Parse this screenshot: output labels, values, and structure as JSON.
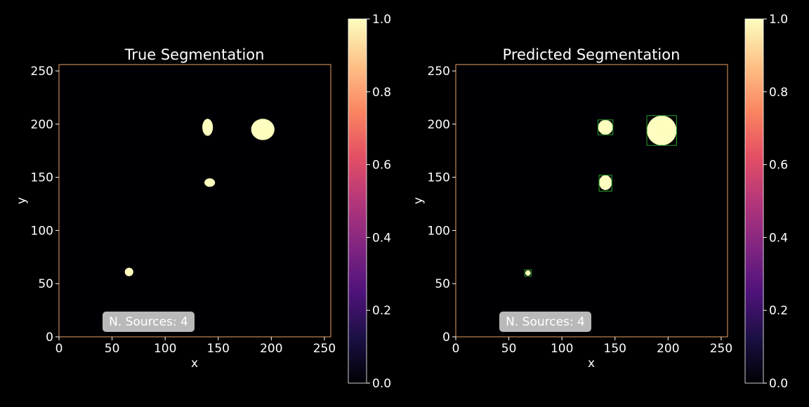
{
  "chart_data": [
    {
      "type": "heatmap",
      "title": "True Segmentation",
      "xlabel": "x",
      "ylabel": "y",
      "xlim": [
        0,
        256
      ],
      "ylim": [
        0,
        256
      ],
      "xticks": [
        0,
        50,
        100,
        150,
        200,
        250
      ],
      "yticks": [
        0,
        50,
        100,
        150,
        200,
        250
      ],
      "colormap": "magma",
      "colorbar": {
        "range": [
          0,
          1
        ],
        "ticks": [
          "0.0",
          "0.2",
          "0.4",
          "0.6",
          "0.8",
          "1.0"
        ]
      },
      "annotation": "N. Sources: 4",
      "sources": [
        {
          "cx": 192,
          "cy": 195,
          "rx": 11,
          "ry": 10
        },
        {
          "cx": 140,
          "cy": 197,
          "rx": 5,
          "ry": 8
        },
        {
          "cx": 142,
          "cy": 145,
          "rx": 5,
          "ry": 4
        },
        {
          "cx": 66,
          "cy": 61,
          "rx": 4,
          "ry": 4
        }
      ],
      "boxes": []
    },
    {
      "type": "heatmap",
      "title": "Predicted Segmentation",
      "xlabel": "x",
      "ylabel": "y",
      "xlim": [
        0,
        256
      ],
      "ylim": [
        0,
        256
      ],
      "xticks": [
        0,
        50,
        100,
        150,
        200,
        250
      ],
      "yticks": [
        0,
        50,
        100,
        150,
        200,
        250
      ],
      "colormap": "magma",
      "colorbar": {
        "range": [
          0,
          1
        ],
        "ticks": [
          "0.0",
          "0.2",
          "0.4",
          "0.6",
          "0.8",
          "1.0"
        ]
      },
      "annotation": "N. Sources: 4",
      "sources": [
        {
          "cx": 194,
          "cy": 194,
          "rx": 14,
          "ry": 14
        },
        {
          "cx": 141,
          "cy": 197,
          "rx": 7,
          "ry": 7
        },
        {
          "cx": 141,
          "cy": 145,
          "rx": 6,
          "ry": 7
        },
        {
          "cx": 68,
          "cy": 60,
          "rx": 2.5,
          "ry": 2.5
        }
      ],
      "boxes": [
        {
          "x0": 180,
          "x1": 208,
          "y0": 180,
          "y1": 208
        },
        {
          "x0": 134,
          "x1": 148,
          "y0": 190,
          "y1": 204
        },
        {
          "x0": 135,
          "x1": 147,
          "y0": 137,
          "y1": 152
        },
        {
          "x0": 65,
          "x1": 71,
          "y0": 57,
          "y1": 63
        }
      ]
    }
  ],
  "colors": {
    "background": "#000000",
    "frame": "#e8a060",
    "source_fill": "#fcfdbf",
    "box_stroke": "#2ca02c",
    "badge_fill": "#d9d9d9"
  }
}
